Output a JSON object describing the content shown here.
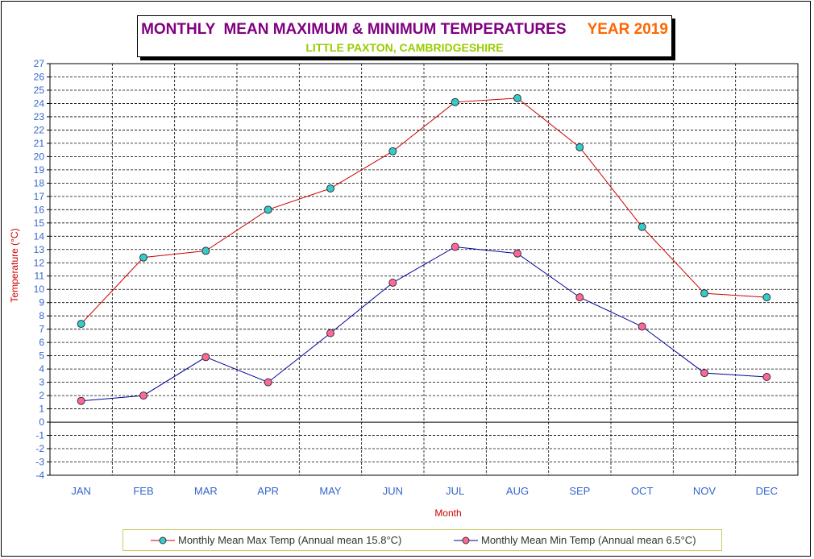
{
  "title": {
    "part1": "MONTHLY  MEAN MAXIMUM & MINIMUM TEMPERATURES",
    "part2": "YEAR 2019",
    "subtitle": "LITTLE PAXTON, CAMBRIDGESHIRE"
  },
  "legend": {
    "max_label": "Monthly Mean Max Temp (Annual mean 15.8°C)",
    "min_label": "Monthly Mean Min Temp (Annual mean 6.5°C)"
  },
  "colors": {
    "title_primary": "#800080",
    "title_year": "#ff6600",
    "subtitle": "#99cc00",
    "axis_text": "#3366cc",
    "axis_title": "#cc0000",
    "max_line": "#cc0000",
    "min_line": "#000099",
    "max_marker": "#33cccc",
    "min_marker": "#ff6699"
  },
  "chart_data": {
    "type": "line",
    "xlabel": "Month",
    "ylabel": "Temperature (°C)",
    "categories": [
      "JAN",
      "FEB",
      "MAR",
      "APR",
      "MAY",
      "JUN",
      "JUL",
      "AUG",
      "SEP",
      "OCT",
      "NOV",
      "DEC"
    ],
    "ylim": [
      -4,
      27
    ],
    "yticks": [
      27,
      26,
      25,
      24,
      23,
      22,
      21,
      20,
      19,
      18,
      17,
      16,
      15,
      14,
      13,
      12,
      11,
      10,
      9,
      8,
      7,
      6,
      5,
      4,
      3,
      2,
      1,
      0,
      -1,
      -2,
      -3,
      -4
    ],
    "grid": true,
    "legend_position": "bottom",
    "series": [
      {
        "name": "Monthly Mean Max Temp (Annual mean 15.8°C)",
        "values": [
          7.4,
          12.4,
          12.9,
          16.0,
          17.6,
          20.4,
          24.1,
          24.4,
          20.7,
          14.7,
          9.7,
          9.4
        ]
      },
      {
        "name": "Monthly Mean Min Temp (Annual mean 6.5°C)",
        "values": [
          1.6,
          2.0,
          4.9,
          3.0,
          6.7,
          10.5,
          13.2,
          12.7,
          9.4,
          7.2,
          3.7,
          3.4
        ]
      }
    ]
  }
}
